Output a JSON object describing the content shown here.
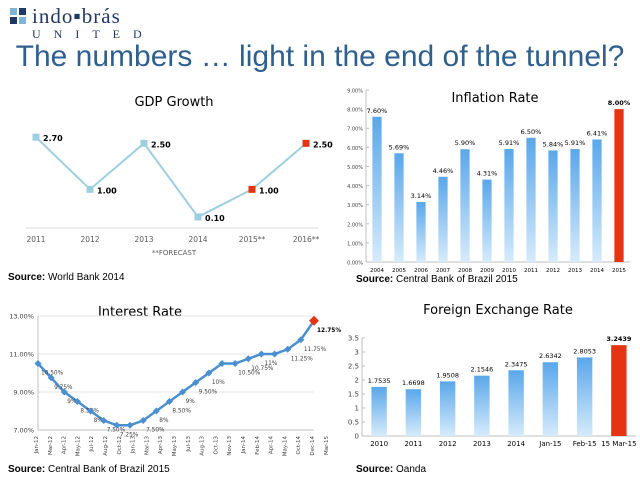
{
  "logo": {
    "line1": "indo▪brás",
    "line2": "UNITED"
  },
  "slide_title": "The numbers … light in the end of the tunnel?",
  "colors": {
    "line": "#9ccfe0",
    "line_dark": "#4a8fd0",
    "highlight": "#e63312",
    "bar_top": "#5aa7ea",
    "bar_bottom": "#d6ebfb",
    "title": "#2e5f8f"
  },
  "sources": {
    "gdp": {
      "label": "Source:",
      "text": " World Bank 2014"
    },
    "inflation": {
      "label": "Source:",
      "text": " Central Bank of Brazil 2015"
    },
    "interest": {
      "label": "Source:",
      "text": " Central Bank of Brazil 2015"
    },
    "fx": {
      "label": "Source:",
      "text": " Oanda"
    }
  },
  "chart_data": [
    {
      "id": "gdp",
      "type": "line",
      "title": "GDP Growth",
      "categories": [
        "2011",
        "2012",
        "2013",
        "2014",
        "2015**",
        "2016**"
      ],
      "values": [
        2.7,
        1.0,
        2.5,
        0.1,
        1.0,
        2.5
      ],
      "labels": [
        "2.70",
        "1.00",
        "2.50",
        "0.10",
        "1.00",
        "2.50"
      ],
      "forecast_from_index": 4,
      "ylim": [
        0,
        3
      ],
      "annotation": "**FORECAST"
    },
    {
      "id": "inflation",
      "type": "bar",
      "title": "Inflation Rate",
      "categories": [
        "2004",
        "2005",
        "2006",
        "2007",
        "2008",
        "2009",
        "2010",
        "2011",
        "2012",
        "2013",
        "2014",
        "2015"
      ],
      "values": [
        7.6,
        5.69,
        3.14,
        4.46,
        5.9,
        4.31,
        5.91,
        6.5,
        5.84,
        5.91,
        6.41,
        8.0
      ],
      "labels": [
        "7.60%",
        "5.69%",
        "3.14%",
        "4.46%",
        "5.90%",
        "4.31%",
        "5.91%",
        "6.50%",
        "5.84%",
        "5.91%",
        "6.41%",
        "8.00%"
      ],
      "highlight_index": 11,
      "ylim": [
        0,
        9
      ],
      "yticks": [
        "0.00%",
        "1.00%",
        "2.00%",
        "3.00%",
        "4.00%",
        "5.00%",
        "6.00%",
        "7.00%",
        "8.00%",
        "9.00%"
      ]
    },
    {
      "id": "interest",
      "type": "line",
      "title": "Interest Rate",
      "categories": [
        "Jan-12",
        "Mar-12",
        "Apr-12",
        "May-12",
        "Jul-12",
        "Aug-12",
        "Oct-12",
        "Jan-13",
        "Mar-13",
        "Apr-13",
        "May-13",
        "Jul-13",
        "Aug-13",
        "Oct-13",
        "Nov-13",
        "Jan-14",
        "Feb-14",
        "Apr-14",
        "May-14",
        "Oct-14",
        "Dec-14",
        "Mar-15"
      ],
      "tick_labels": [
        "Jan-12",
        "Apr-12",
        "Jul-12",
        "Oct-12",
        "Mar-13",
        "May-13",
        "Aug-13",
        "Nov-13",
        "Feb-14",
        "May-14",
        "Dec-14",
        "Mar-12",
        "May-12",
        "Aug-12",
        "Jan-13",
        "Apr-13",
        "Jul-13",
        "Oct-13",
        "Jan-14",
        "Apr-14",
        "Oct-14",
        "Mar-15"
      ],
      "values": [
        10.5,
        9.75,
        9.0,
        8.5,
        8.0,
        7.5,
        7.25,
        7.25,
        7.5,
        8.0,
        8.5,
        9.0,
        9.5,
        10.0,
        10.5,
        10.5,
        10.75,
        11.0,
        11.0,
        11.25,
        11.75,
        12.75
      ],
      "labels": [
        "10.50%",
        "9.75%",
        "9%",
        "8.50%",
        "8%",
        "7.50%",
        "7.25%",
        "",
        "7.50%",
        "8%",
        "8.50%",
        "9%",
        "9.50%",
        "10%",
        "",
        "10.50%",
        "10.75%",
        "11%",
        "",
        "11.25%",
        "11.75%",
        "12.75%"
      ],
      "ylim": [
        7,
        13
      ],
      "yticks": [
        "7.00%",
        "9.00%",
        "11.00%",
        "13.00%"
      ]
    },
    {
      "id": "fx",
      "type": "bar",
      "title": "Foreign Exchange Rate",
      "categories": [
        "2010",
        "2011",
        "2012",
        "2013",
        "2014",
        "Jan-15",
        "Feb-15",
        "15 Mar-15"
      ],
      "values": [
        1.7535,
        1.6698,
        1.9508,
        2.1546,
        2.3475,
        2.6342,
        2.8053,
        3.2439
      ],
      "labels": [
        "1.7535",
        "1.6698",
        "1.9508",
        "2.1546",
        "2.3475",
        "2.6342",
        "2.8053",
        "3.2439"
      ],
      "highlight_index": 7,
      "ylim": [
        0,
        3.5
      ],
      "yticks": [
        "0",
        "0.5",
        "1",
        "1.5",
        "2",
        "2.5",
        "3",
        "3.5"
      ]
    }
  ]
}
